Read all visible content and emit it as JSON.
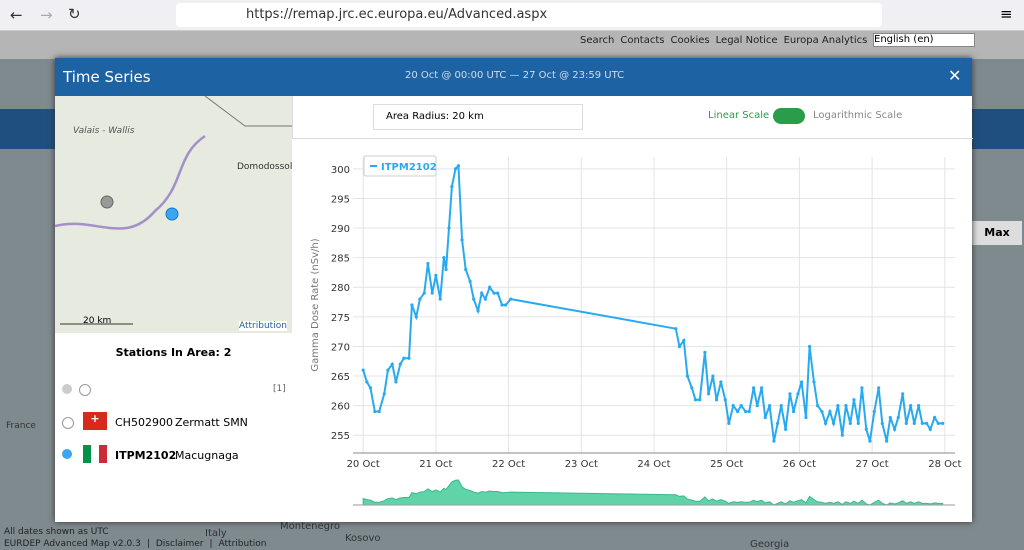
{
  "browser": {
    "url": "https://remap.jrc.ec.europa.eu/Advanced.aspx"
  },
  "site": {
    "menu": [
      "Search",
      "Contacts",
      "Cookies",
      "Legal Notice",
      "Europa Analytics"
    ],
    "language": "English (en)",
    "side_button": "Max",
    "map_labels": [
      "France",
      "Italy",
      "Montenegro",
      "Kosovo",
      "Georgia"
    ],
    "footer_note": "All dates shown as UTC",
    "footer": [
      "EURDEP Advanced Map v2.0.3",
      "Disclaimer",
      "Attribution"
    ]
  },
  "modal": {
    "title": "Time Series",
    "period": "20 Oct @ 00:00 UTC  —  27 Oct @ 23:59 UTC",
    "radius": "Area Radius: 20 km",
    "linear": "Linear Scale",
    "log": "Logarithmic Scale",
    "stations_heading": "Stations In Area: 2",
    "page_count": "[1]",
    "stations": [
      {
        "id": "CH502900",
        "name": "Zermatt SMN"
      },
      {
        "id": "ITPM2102",
        "name": "Macugnaga"
      }
    ],
    "map": {
      "labels": [
        "Valais - Wallis",
        "Domodossola"
      ],
      "scale": "20 km",
      "attribution": "Attribution"
    }
  },
  "chart_data": {
    "type": "line",
    "y_label": "Gamma Dose Rate (nSv/h)",
    "legend": "top-left",
    "grid": true,
    "log_scale": false,
    "x": [
      20.0,
      20.05,
      20.1,
      20.16,
      20.22,
      20.29,
      20.34,
      20.4,
      20.45,
      20.51,
      20.56,
      20.63,
      20.67,
      20.73,
      20.78,
      20.84,
      20.89,
      20.95,
      21.0,
      21.06,
      21.11,
      21.14,
      21.18,
      21.22,
      21.27,
      21.31,
      21.36,
      21.41,
      21.47,
      21.52,
      21.58,
      21.63,
      21.68,
      21.74,
      21.8,
      21.85,
      21.91,
      21.96,
      22.03,
      24.3,
      24.35,
      24.41,
      24.46,
      24.52,
      24.57,
      24.63,
      24.7,
      24.75,
      24.81,
      24.86,
      24.92,
      24.98,
      25.03,
      25.09,
      25.15,
      25.2,
      25.26,
      25.31,
      25.37,
      25.42,
      25.48,
      25.53,
      25.59,
      25.65,
      25.7,
      25.75,
      25.81,
      25.87,
      25.92,
      25.98,
      26.03,
      26.09,
      26.14,
      26.2,
      26.25,
      26.31,
      26.36,
      26.42,
      26.47,
      26.53,
      26.59,
      26.64,
      26.7,
      26.75,
      26.81,
      26.86,
      26.92,
      26.97,
      27.03,
      27.09,
      27.14,
      27.2,
      27.25,
      27.31,
      27.36,
      27.42,
      27.47,
      27.53,
      27.58,
      27.64,
      27.69,
      27.75,
      27.8,
      27.86,
      27.91,
      27.97
    ],
    "series": [
      {
        "name": "ITPM2102",
        "color": "#29aaf0",
        "values": [
          266,
          264,
          263,
          259,
          259,
          262,
          266,
          267,
          264,
          267,
          268,
          268,
          277,
          275,
          278,
          279,
          284,
          279,
          282,
          278,
          285,
          283,
          290,
          297,
          300,
          300.5,
          288,
          283,
          281,
          278,
          276,
          279,
          278,
          280,
          279,
          279,
          277,
          277,
          278,
          273,
          270,
          271,
          265,
          263,
          261,
          261,
          269,
          262,
          265,
          261,
          264,
          261,
          257,
          260,
          259,
          260,
          259,
          259,
          263,
          260,
          263,
          258,
          260,
          254,
          257,
          260,
          256,
          262,
          259,
          262,
          264,
          258,
          270,
          264,
          260,
          259,
          257,
          259,
          257,
          260,
          255,
          260,
          257,
          261,
          257,
          263,
          256,
          254,
          259,
          263,
          257,
          254,
          258,
          256,
          258,
          262,
          257,
          260,
          257,
          260,
          257,
          257,
          256,
          258,
          257,
          257
        ]
      }
    ],
    "xlim": [
      19.86,
      28.14
    ],
    "xticks": [
      {
        "value": 20,
        "label": "20 Oct"
      },
      {
        "value": 21,
        "label": "21 Oct"
      },
      {
        "value": 22,
        "label": "22 Oct"
      },
      {
        "value": 23,
        "label": "23 Oct"
      },
      {
        "value": 24,
        "label": "24 Oct"
      },
      {
        "value": 25,
        "label": "25 Oct"
      },
      {
        "value": 26,
        "label": "26 Oct"
      },
      {
        "value": 27,
        "label": "27 Oct"
      },
      {
        "value": 28,
        "label": "28 Oct"
      }
    ],
    "ylim": [
      252,
      302
    ],
    "yticks": [
      255,
      260,
      265,
      270,
      275,
      280,
      285,
      290,
      295,
      300
    ]
  }
}
